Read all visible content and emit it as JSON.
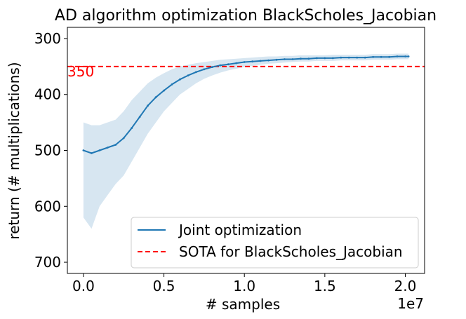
{
  "chart_data": {
    "type": "line",
    "title": "AD algorithm optimization BlackScholes_Jacobian",
    "xlabel": "# samples",
    "ylabel": "return (# multiplications)",
    "x_offset_label": "1e7",
    "x_scale": 10000000,
    "xlim": [
      -1000000,
      21200000
    ],
    "ylim": [
      720,
      280
    ],
    "y_inverted": true,
    "x_ticks": [
      0,
      5000000,
      10000000,
      15000000,
      20000000
    ],
    "x_tick_labels": [
      "0.0",
      "0.5",
      "1.0",
      "1.5",
      "2.0"
    ],
    "y_ticks": [
      300,
      400,
      500,
      600,
      700
    ],
    "y_tick_labels": [
      "300",
      "400",
      "500",
      "600",
      "700"
    ],
    "series": [
      {
        "name": "Joint optimization",
        "color": "#1f77b4",
        "x": [
          0,
          500000,
          1000000,
          1500000,
          2000000,
          2500000,
          3000000,
          3500000,
          4000000,
          4500000,
          5000000,
          5500000,
          6000000,
          6500000,
          7000000,
          7500000,
          8000000,
          8500000,
          9000000,
          9500000,
          10000000,
          10500000,
          11000000,
          11500000,
          12000000,
          12500000,
          13000000,
          13500000,
          14000000,
          14500000,
          15000000,
          15500000,
          16000000,
          16500000,
          17000000,
          17500000,
          18000000,
          18500000,
          19000000,
          19500000,
          20000000,
          20200000
        ],
        "values": [
          500,
          505,
          500,
          495,
          490,
          478,
          460,
          440,
          420,
          405,
          393,
          382,
          373,
          366,
          360,
          355,
          351,
          348,
          346,
          344,
          342,
          341,
          340,
          339,
          338,
          337,
          337,
          336,
          336,
          335,
          335,
          335,
          334,
          334,
          334,
          334,
          333,
          333,
          333,
          332,
          332,
          332
        ],
        "band_lower": [
          450,
          455,
          455,
          450,
          445,
          430,
          410,
          395,
          380,
          370,
          362,
          355,
          350,
          347,
          344,
          342,
          340,
          338,
          337,
          336,
          335,
          334,
          333,
          332,
          332,
          331,
          331,
          330,
          330,
          330,
          330,
          329,
          329,
          329,
          329,
          329,
          328,
          328,
          328,
          327,
          327,
          327
        ],
        "band_upper": [
          620,
          640,
          600,
          580,
          560,
          545,
          520,
          495,
          470,
          450,
          430,
          415,
          400,
          390,
          380,
          372,
          366,
          361,
          357,
          354,
          351,
          349,
          347,
          345,
          344,
          343,
          342,
          341,
          341,
          340,
          340,
          340,
          339,
          339,
          339,
          339,
          338,
          338,
          338,
          337,
          337,
          337
        ]
      },
      {
        "name": "SOTA for BlackScholes_Jacobian",
        "color": "#ff0000",
        "style": "dashed",
        "constant": 350
      }
    ],
    "annotations": [
      {
        "text": "350",
        "color": "#ff0000",
        "anchor": "left edge, at SOTA line"
      }
    ],
    "legend": {
      "placement": "lower-right"
    },
    "grid": false
  }
}
